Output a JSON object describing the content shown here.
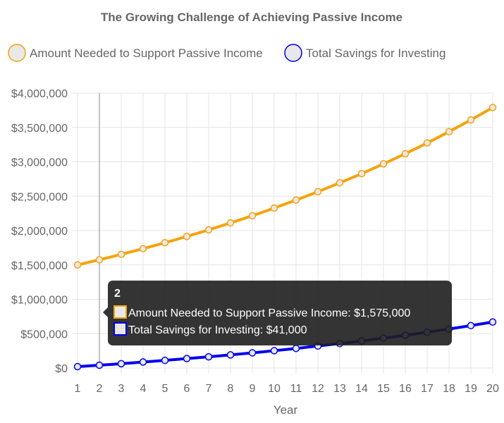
{
  "chart_data": {
    "type": "line",
    "title": "The Growing Challenge of Achieving Passive Income",
    "xlabel": "Year",
    "ylabel": "",
    "x": [
      1,
      2,
      3,
      4,
      5,
      6,
      7,
      8,
      9,
      10,
      11,
      12,
      13,
      14,
      15,
      16,
      17,
      18,
      19,
      20
    ],
    "ylim": [
      0,
      4000000
    ],
    "y_ticks": [
      0,
      500000,
      1000000,
      1500000,
      2000000,
      2500000,
      3000000,
      3500000,
      4000000
    ],
    "y_tick_labels": [
      "$0",
      "$500,000",
      "$1,000,000",
      "$1,500,000",
      "$2,000,000",
      "$2,500,000",
      "$3,000,000",
      "$3,500,000",
      "$4,000,000"
    ],
    "grid": true,
    "legend_position": "top",
    "series": [
      {
        "name": "Amount Needed to Support Passive Income",
        "color": "#f5a30c",
        "fill_color": "#e8e8e8",
        "values": [
          1500000,
          1575000,
          1654000,
          1736000,
          1823000,
          1914000,
          2010000,
          2111000,
          2216000,
          2327000,
          2443000,
          2565000,
          2694000,
          2828000,
          2970000,
          3118000,
          3274000,
          3438000,
          3610000,
          3790000
        ]
      },
      {
        "name": "Total Savings for Investing",
        "color": "#0000ee",
        "fill_color": "#e8e8e8",
        "values": [
          20000,
          41000,
          63000,
          87000,
          111000,
          137000,
          163000,
          191000,
          221000,
          252000,
          285000,
          320000,
          356000,
          394000,
          434000,
          477000,
          521000,
          568000,
          617000,
          669000
        ]
      }
    ],
    "tooltip": {
      "title": "2",
      "lines": [
        "Amount Needed to Support Passive Income: $1,575,000",
        "Total Savings for Investing: $41,000"
      ],
      "active_x": 2
    }
  }
}
